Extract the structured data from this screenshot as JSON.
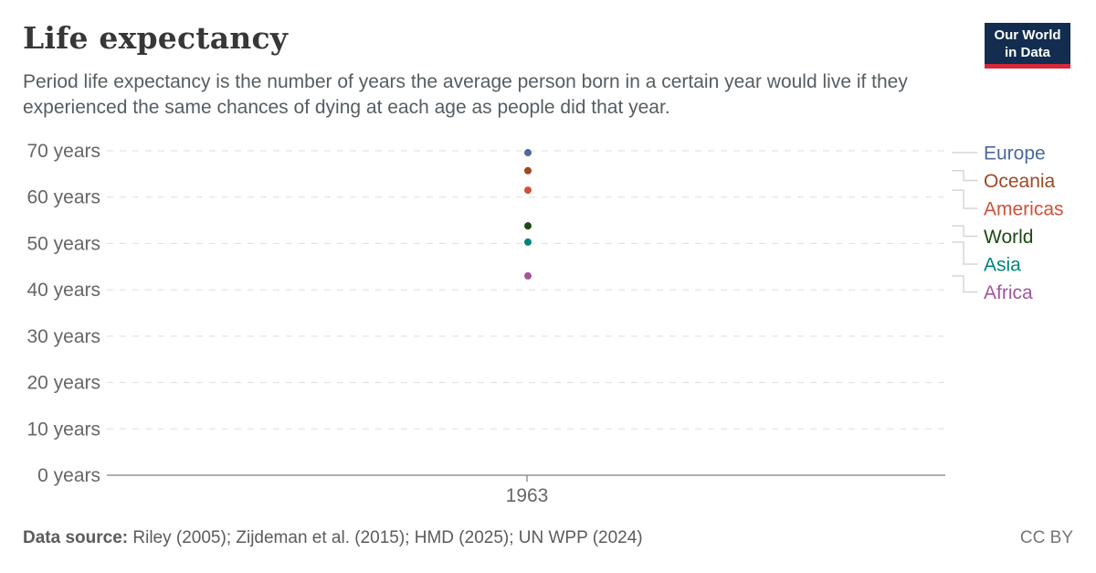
{
  "header": {
    "title": "Life expectancy",
    "subtitle": "Period life expectancy is the number of years the average person born in a certain year would live if they experienced the same chances of dying at each age as people did that year.",
    "logo": {
      "line1": "Our World",
      "line2": "in Data",
      "bg_color": "#122d4f",
      "stripe_color": "#d7273a"
    }
  },
  "chart_data": {
    "type": "scatter",
    "title": "Life expectancy",
    "x": [
      1963
    ],
    "x_tick_label": "1963",
    "xlabel": "",
    "ylabel": "",
    "ylim": [
      0,
      70
    ],
    "y_ticks": [
      0,
      10,
      20,
      30,
      40,
      50,
      60,
      70
    ],
    "y_tick_suffix": " years",
    "grid": true,
    "legend_position": "right",
    "series": [
      {
        "name": "Europe",
        "year": 1963,
        "value": 69.6,
        "color": "#4c6a9c"
      },
      {
        "name": "Oceania",
        "year": 1963,
        "value": 65.7,
        "color": "#9b4a26"
      },
      {
        "name": "Americas",
        "year": 1963,
        "value": 61.5,
        "color": "#d0503b"
      },
      {
        "name": "World",
        "year": 1963,
        "value": 53.8,
        "color": "#1d4a15"
      },
      {
        "name": "Asia",
        "year": 1963,
        "value": 50.3,
        "color": "#00847e"
      },
      {
        "name": "Africa",
        "year": 1963,
        "value": 43.0,
        "color": "#a2559c"
      }
    ]
  },
  "footer": {
    "source_label": "Data source:",
    "source_text": " Riley (2005); Zijdeman et al. (2015); HMD (2025); UN WPP (2024)",
    "license": "CC BY"
  }
}
